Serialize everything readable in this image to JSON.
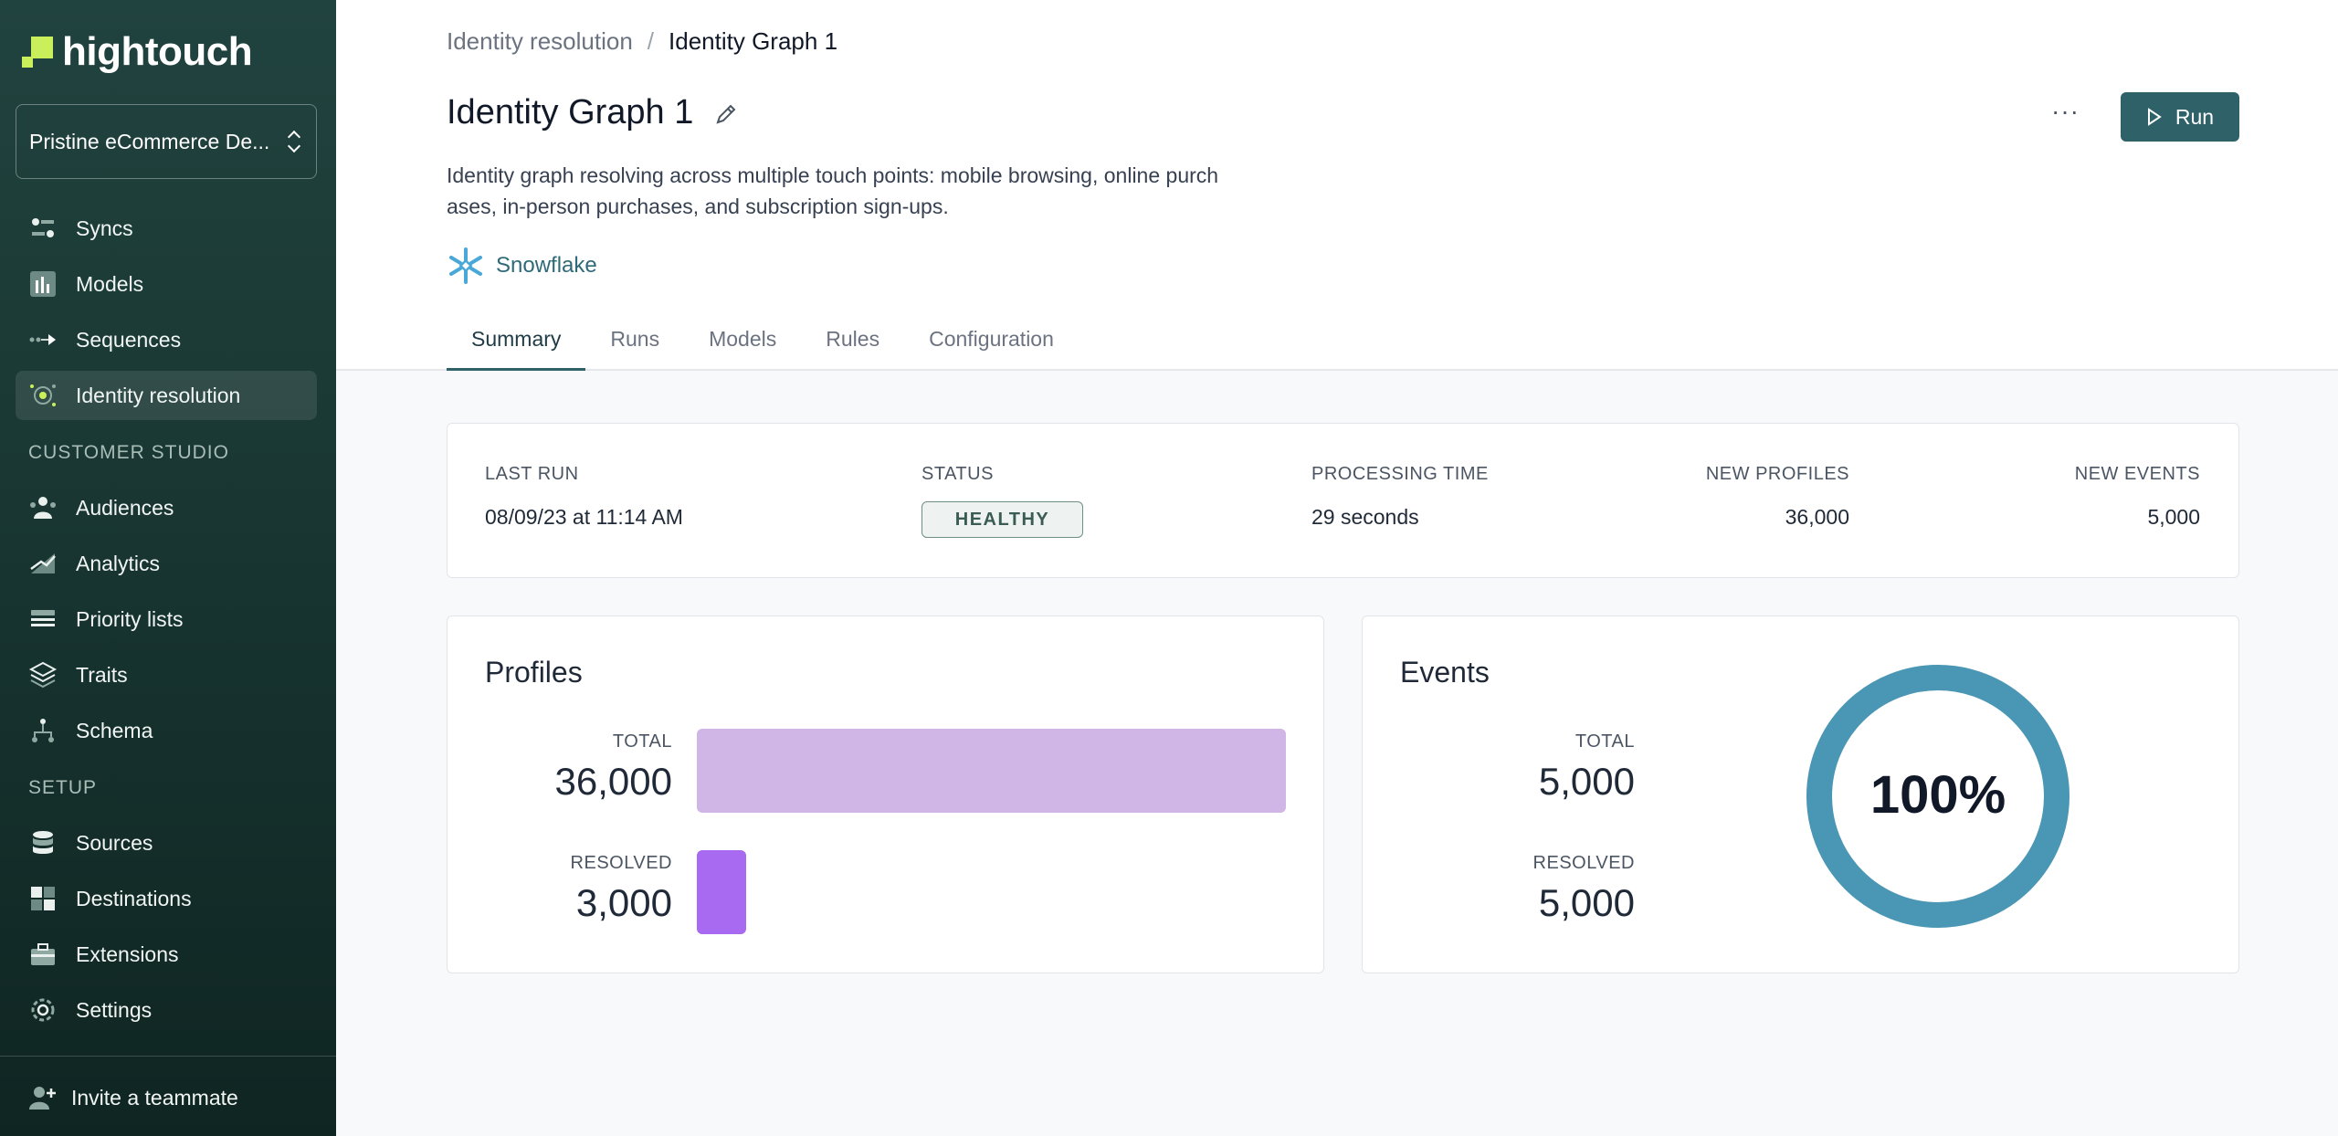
{
  "sidebar": {
    "logo": "hightouch",
    "workspace": "Pristine eCommerce De...",
    "items": [
      {
        "label": "Syncs",
        "icon": "syncs-icon"
      },
      {
        "label": "Models",
        "icon": "models-icon"
      },
      {
        "label": "Sequences",
        "icon": "sequences-icon"
      },
      {
        "label": "Identity resolution",
        "icon": "identity-icon",
        "active": true
      }
    ],
    "customer_studio_label": "CUSTOMER STUDIO",
    "studio_items": [
      {
        "label": "Audiences",
        "icon": "audiences-icon"
      },
      {
        "label": "Analytics",
        "icon": "analytics-icon"
      },
      {
        "label": "Priority lists",
        "icon": "priority-lists-icon"
      },
      {
        "label": "Traits",
        "icon": "traits-icon"
      },
      {
        "label": "Schema",
        "icon": "schema-icon"
      }
    ],
    "setup_label": "SETUP",
    "setup_items": [
      {
        "label": "Sources",
        "icon": "sources-icon"
      },
      {
        "label": "Destinations",
        "icon": "destinations-icon"
      },
      {
        "label": "Extensions",
        "icon": "extensions-icon"
      },
      {
        "label": "Settings",
        "icon": "settings-icon"
      }
    ],
    "invite": "Invite a teammate"
  },
  "breadcrumb": {
    "parent": "Identity resolution",
    "separator": "/",
    "current": "Identity Graph 1"
  },
  "header": {
    "title": "Identity Graph 1",
    "description": "Identity graph resolving across multiple touch points: mobile browsing, online purch ases, in-person purchases, and subscription sign-ups.",
    "source": "Snowflake",
    "more": "···",
    "run_label": "Run"
  },
  "tabs": [
    "Summary",
    "Runs",
    "Models",
    "Rules",
    "Configuration"
  ],
  "summary": {
    "last_run_label": "LAST RUN",
    "last_run": "08/09/23 at 11:14 AM",
    "status_label": "STATUS",
    "status": "HEALTHY",
    "processing_label": "PROCESSING TIME",
    "processing": "29 seconds",
    "new_profiles_label": "NEW PROFILES",
    "new_profiles": "36,000",
    "new_events_label": "NEW EVENTS",
    "new_events": "5,000"
  },
  "profiles": {
    "title": "Profiles",
    "total_label": "TOTAL",
    "total": "36,000",
    "resolved_label": "RESOLVED",
    "resolved": "3,000"
  },
  "events": {
    "title": "Events",
    "total_label": "TOTAL",
    "total": "5,000",
    "resolved_label": "RESOLVED",
    "resolved": "5,000",
    "percent": "100%"
  },
  "chart_data": [
    {
      "type": "bar",
      "categories": [
        "TOTAL",
        "RESOLVED"
      ],
      "values": [
        36000,
        3000
      ],
      "title": "Profiles",
      "colors": [
        "#cfb6e6",
        "#a76af0"
      ]
    },
    {
      "type": "pie",
      "categories": [
        "RESOLVED"
      ],
      "values": [
        100
      ],
      "title": "Events",
      "colors": [
        "#4a96b5"
      ]
    }
  ],
  "colors": {
    "accent": "#2f6169",
    "sidebar": "#1a3835",
    "logo": "#c9f05a"
  }
}
